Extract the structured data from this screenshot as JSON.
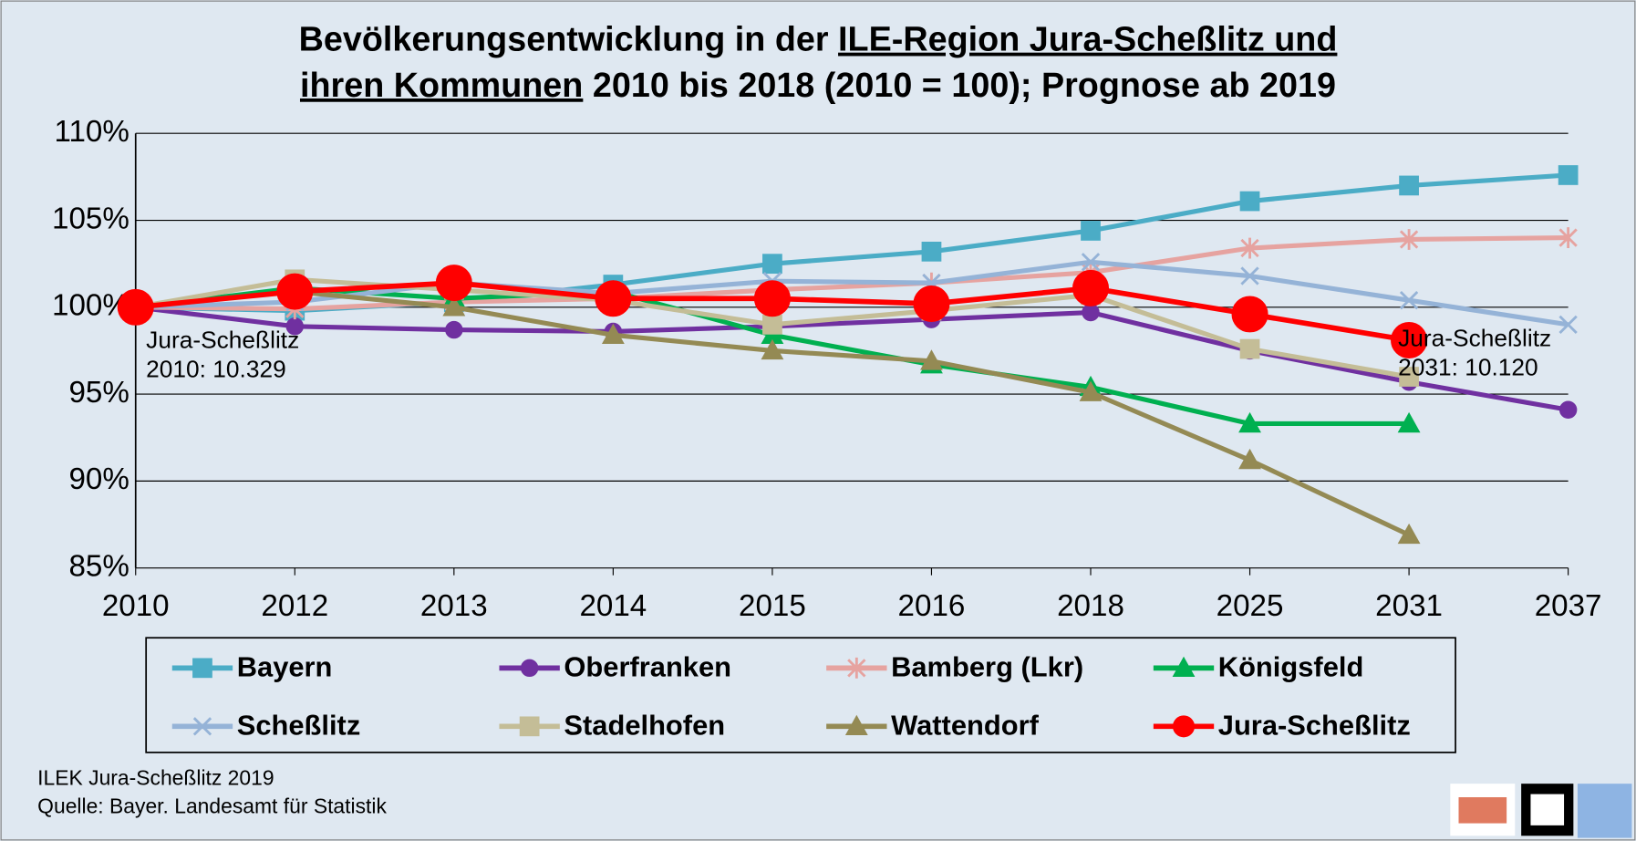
{
  "chart_data": {
    "type": "line",
    "title": [
      "Bevölkerungsentwicklung in der ",
      "ILE-Region Jura-Scheßlitz und",
      "ihren Kommunen",
      " 2010 bis 2018 (2010 = 100); Prognose ab 2019"
    ],
    "title_underlined": [
      1,
      2
    ],
    "categories": [
      "2010",
      "2012",
      "2013",
      "2014",
      "2015",
      "2016",
      "2018",
      "2025",
      "2031",
      "2037"
    ],
    "ylim": [
      85,
      110
    ],
    "yticks": [
      {
        "value": 85,
        "label": "85%"
      },
      {
        "value": 90,
        "label": "90%"
      },
      {
        "value": 95,
        "label": "95%"
      },
      {
        "value": 100,
        "label": "100%"
      },
      {
        "value": 105,
        "label": "105%"
      },
      {
        "value": 110,
        "label": "110%"
      }
    ],
    "grid": true,
    "series": [
      {
        "name": "Bayern",
        "color": "#4bacc6",
        "marker": "square",
        "values": [
          100,
          99.8,
          100.3,
          101.3,
          102.5,
          103.2,
          104.4,
          106.1,
          107.0,
          107.6
        ]
      },
      {
        "name": "Oberfranken",
        "color": "#7030a0",
        "marker": "circle",
        "values": [
          100,
          98.9,
          98.7,
          98.6,
          98.9,
          99.3,
          99.7,
          97.5,
          95.7,
          94.1
        ]
      },
      {
        "name": "Bamberg (Lkr)",
        "color": "#e6a3a0",
        "marker": "star",
        "values": [
          100,
          99.9,
          100.3,
          100.5,
          101.0,
          101.4,
          102.0,
          103.4,
          103.9,
          104.0
        ]
      },
      {
        "name": "Königsfeld",
        "color": "#00b050",
        "marker": "triangle",
        "values": [
          100,
          101.1,
          100.5,
          100.9,
          98.4,
          96.7,
          95.4,
          93.3,
          93.3,
          null
        ]
      },
      {
        "name": "Scheßlitz",
        "color": "#95b3d7",
        "marker": "x",
        "values": [
          100,
          100.3,
          101.4,
          100.8,
          101.5,
          101.4,
          102.6,
          101.8,
          100.4,
          99.0
        ]
      },
      {
        "name": "Stadelhofen",
        "color": "#c4bd97",
        "marker": "square",
        "values": [
          100,
          101.6,
          101.0,
          100.4,
          99.0,
          99.8,
          100.7,
          97.6,
          96.0,
          null
        ]
      },
      {
        "name": "Wattendorf",
        "color": "#948a54",
        "marker": "triangle",
        "values": [
          100,
          100.9,
          100.0,
          98.4,
          97.5,
          96.9,
          95.1,
          91.2,
          86.9,
          null
        ]
      },
      {
        "name": "Jura-Scheßlitz",
        "color": "#ff0000",
        "marker": "bigcircle",
        "values": [
          100,
          100.9,
          101.4,
          100.5,
          100.5,
          100.2,
          101.1,
          99.6,
          98.1,
          null
        ]
      }
    ],
    "annotations": [
      [
        "Jura-Scheßlitz",
        "2010: 10.329"
      ],
      [
        "Jura-Scheßlitz",
        "2031: 10.120"
      ]
    ],
    "footer": [
      "ILEK Jura-Scheßlitz 2019",
      "Quelle:  Bayer. Landesamt  für Statistik"
    ]
  }
}
